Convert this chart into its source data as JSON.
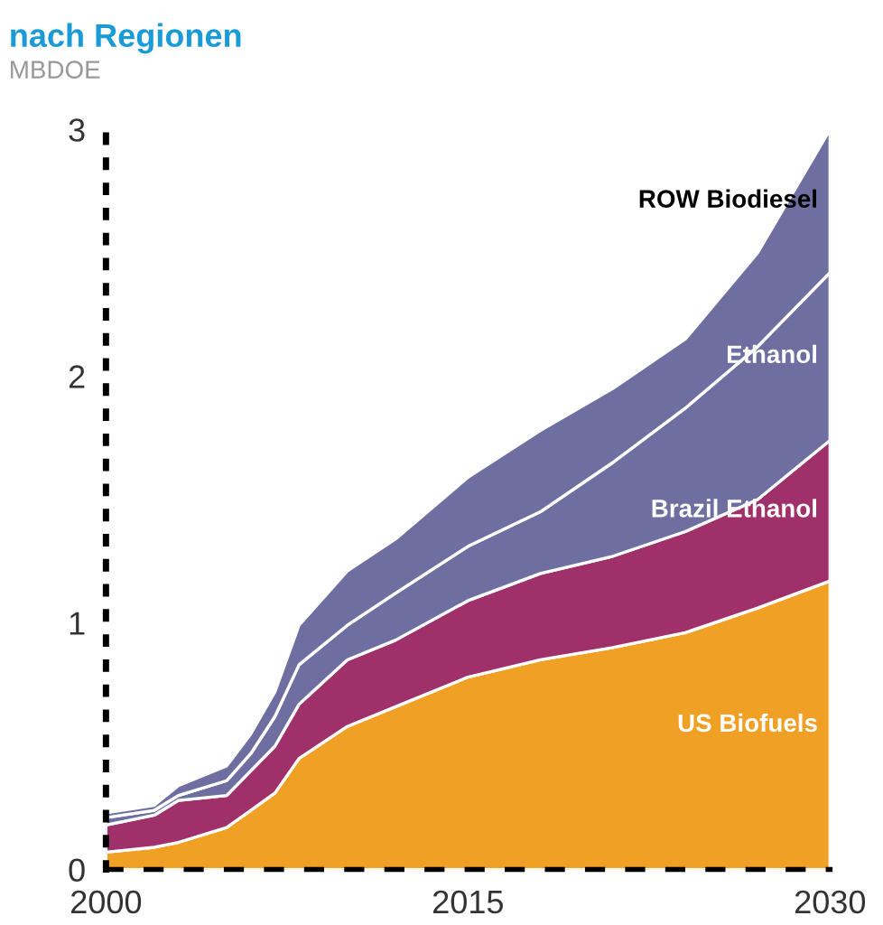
{
  "chart_data": {
    "type": "area",
    "stacked": true,
    "title": "nach Regionen",
    "subtitle": "MBDOE",
    "x": [
      2000,
      2002,
      2003,
      2005,
      2006,
      2007,
      2008,
      2010,
      2012,
      2015,
      2018,
      2021,
      2024,
      2027,
      2030
    ],
    "series": [
      {
        "name": "US Biofuels",
        "color": "#f0a024",
        "values": [
          0.07,
          0.09,
          0.11,
          0.17,
          0.24,
          0.31,
          0.45,
          0.58,
          0.66,
          0.78,
          0.85,
          0.9,
          0.96,
          1.06,
          1.17
        ]
      },
      {
        "name": "Brazil Ethanol",
        "color": "#a0306a",
        "values": [
          0.11,
          0.13,
          0.17,
          0.13,
          0.16,
          0.19,
          0.22,
          0.27,
          0.27,
          0.31,
          0.35,
          0.37,
          0.41,
          0.44,
          0.57
        ]
      },
      {
        "name": "Ethanol",
        "color": "#6e6fa0",
        "values": [
          0.03,
          0.02,
          0.02,
          0.06,
          0.07,
          0.12,
          0.16,
          0.14,
          0.19,
          0.22,
          0.25,
          0.38,
          0.5,
          0.62,
          0.68
        ]
      },
      {
        "name": "ROW Biodiesel",
        "color": "#6e6fa0",
        "values": [
          0.02,
          0.02,
          0.04,
          0.06,
          0.08,
          0.1,
          0.16,
          0.22,
          0.22,
          0.28,
          0.33,
          0.3,
          0.28,
          0.38,
          0.58
        ]
      }
    ],
    "xlim": [
      2000,
      2030
    ],
    "xticks": [
      2000,
      2015,
      2030
    ],
    "ylim": [
      0,
      3
    ],
    "yticks": [
      0,
      1,
      2,
      3
    ],
    "grid": false,
    "legend": false
  }
}
